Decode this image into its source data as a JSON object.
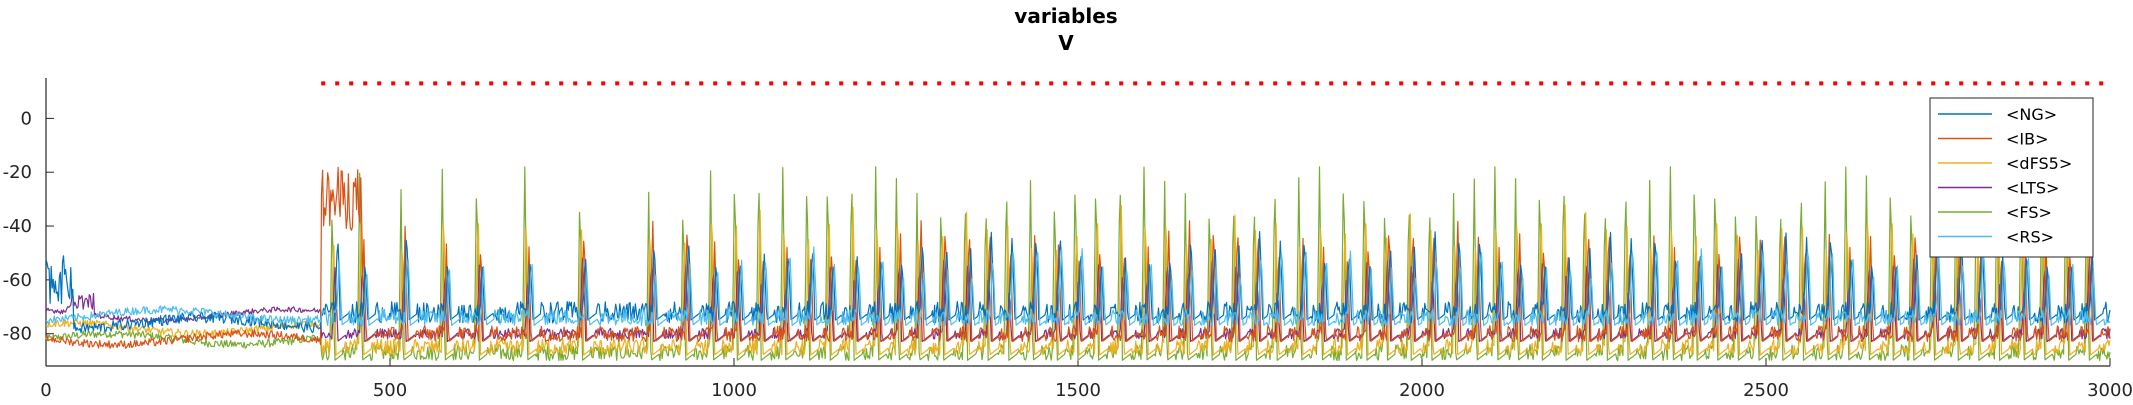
{
  "chart_data": {
    "type": "line",
    "title": "variables",
    "subtitle": "V",
    "xlim": [
      0,
      3000
    ],
    "ylim": [
      -92,
      15
    ],
    "xticks": [
      0,
      500,
      1000,
      1500,
      2000,
      2500,
      3000
    ],
    "yticks": [
      0,
      -20,
      -40,
      -60,
      -80
    ],
    "grid": false,
    "legend_position": "top-right",
    "colors": {
      "NG": "#0072bd",
      "IB": "#d95319",
      "dFS5": "#edb120",
      "LTS": "#7e2f8e",
      "FS": "#77ac30",
      "RS": "#4dbeee",
      "marker": "#ff0000"
    },
    "series": [
      {
        "name": "<NG>",
        "key": "NG",
        "color": "#0072bd",
        "baseline": -72,
        "noise": 4,
        "spike_peak": -52,
        "early_level": -76
      },
      {
        "name": "<IB>",
        "key": "IB",
        "color": "#d95319",
        "baseline": -80,
        "noise": 3,
        "spike_peak": -48,
        "early_level": -82
      },
      {
        "name": "<dFS5>",
        "key": "dFS5",
        "color": "#edb120",
        "baseline": -85,
        "noise": 3,
        "spike_peak": -42,
        "early_level": -78
      },
      {
        "name": "<LTS>",
        "key": "LTS",
        "color": "#7e2f8e",
        "baseline": -80,
        "noise": 2,
        "spike_peak": -62,
        "early_level": -73
      },
      {
        "name": "<FS>",
        "key": "FS",
        "color": "#77ac30",
        "baseline": -87,
        "noise": 3,
        "spike_peak": -28,
        "early_level": -82
      },
      {
        "name": "<RS>",
        "key": "RS",
        "color": "#4dbeee",
        "baseline": -74,
        "noise": 3,
        "spike_peak": -57,
        "early_level": -73
      }
    ],
    "spike_times": [
      420,
      460,
      520,
      580,
      630,
      700,
      780,
      880,
      930,
      970,
      1005,
      1040,
      1075,
      1110,
      1140,
      1175,
      1210,
      1240,
      1270,
      1305,
      1340,
      1370,
      1400,
      1435,
      1470,
      1500,
      1530,
      1565,
      1600,
      1630,
      1660,
      1695,
      1730,
      1760,
      1790,
      1825,
      1855,
      1890,
      1920,
      1950,
      1985,
      2015,
      2050,
      2080,
      2110,
      2140,
      2175,
      2210,
      2240,
      2270,
      2300,
      2335,
      2365,
      2400,
      2430,
      2460,
      2490,
      2525,
      2555,
      2590,
      2620,
      2650,
      2685,
      2715,
      2745,
      2780,
      2810,
      2840,
      2875,
      2905,
      2940,
      2970
    ],
    "ib_burst": {
      "start": 400,
      "end": 460,
      "level": -30
    },
    "red_marker": {
      "start": 400,
      "end": 3000,
      "y": 13
    }
  }
}
